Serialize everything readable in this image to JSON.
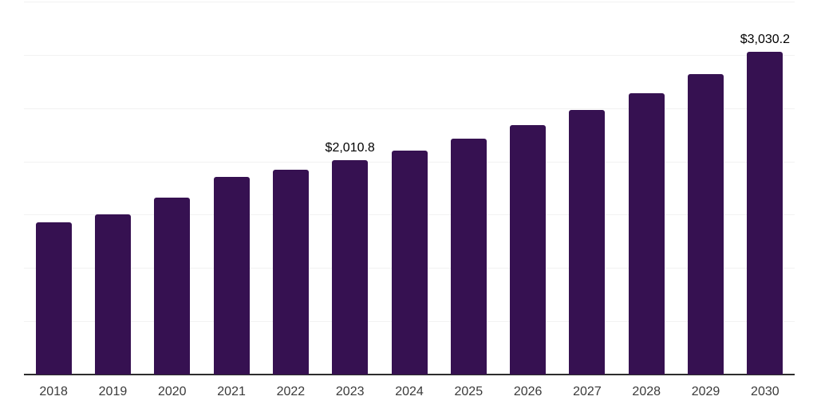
{
  "chart_data": {
    "type": "bar",
    "title": "",
    "xlabel": "",
    "ylabel": "",
    "categories": [
      "2018",
      "2019",
      "2020",
      "2021",
      "2022",
      "2023",
      "2024",
      "2025",
      "2026",
      "2027",
      "2028",
      "2029",
      "2030"
    ],
    "values": [
      1430.0,
      1501.0,
      1660.0,
      1856.0,
      1925.0,
      2010.8,
      2100.0,
      2216.0,
      2343.0,
      2481.0,
      2640.0,
      2822.0,
      3030.2
    ],
    "value_labels": {
      "2023": "$2,010.8",
      "2030": "$3,030.2"
    },
    "ylim": [
      0,
      3500
    ],
    "gridline_step": 500,
    "grid": "horizontal-only",
    "legend": "none",
    "y_axis_tick_labels": "none",
    "colors": {
      "bar": "#361151",
      "gridline": "#f2f2f2",
      "axis_line": "#2d2d2d",
      "x_tick_label": "#3a3a3a",
      "value_label": "#000000",
      "background": "#ffffff"
    }
  }
}
